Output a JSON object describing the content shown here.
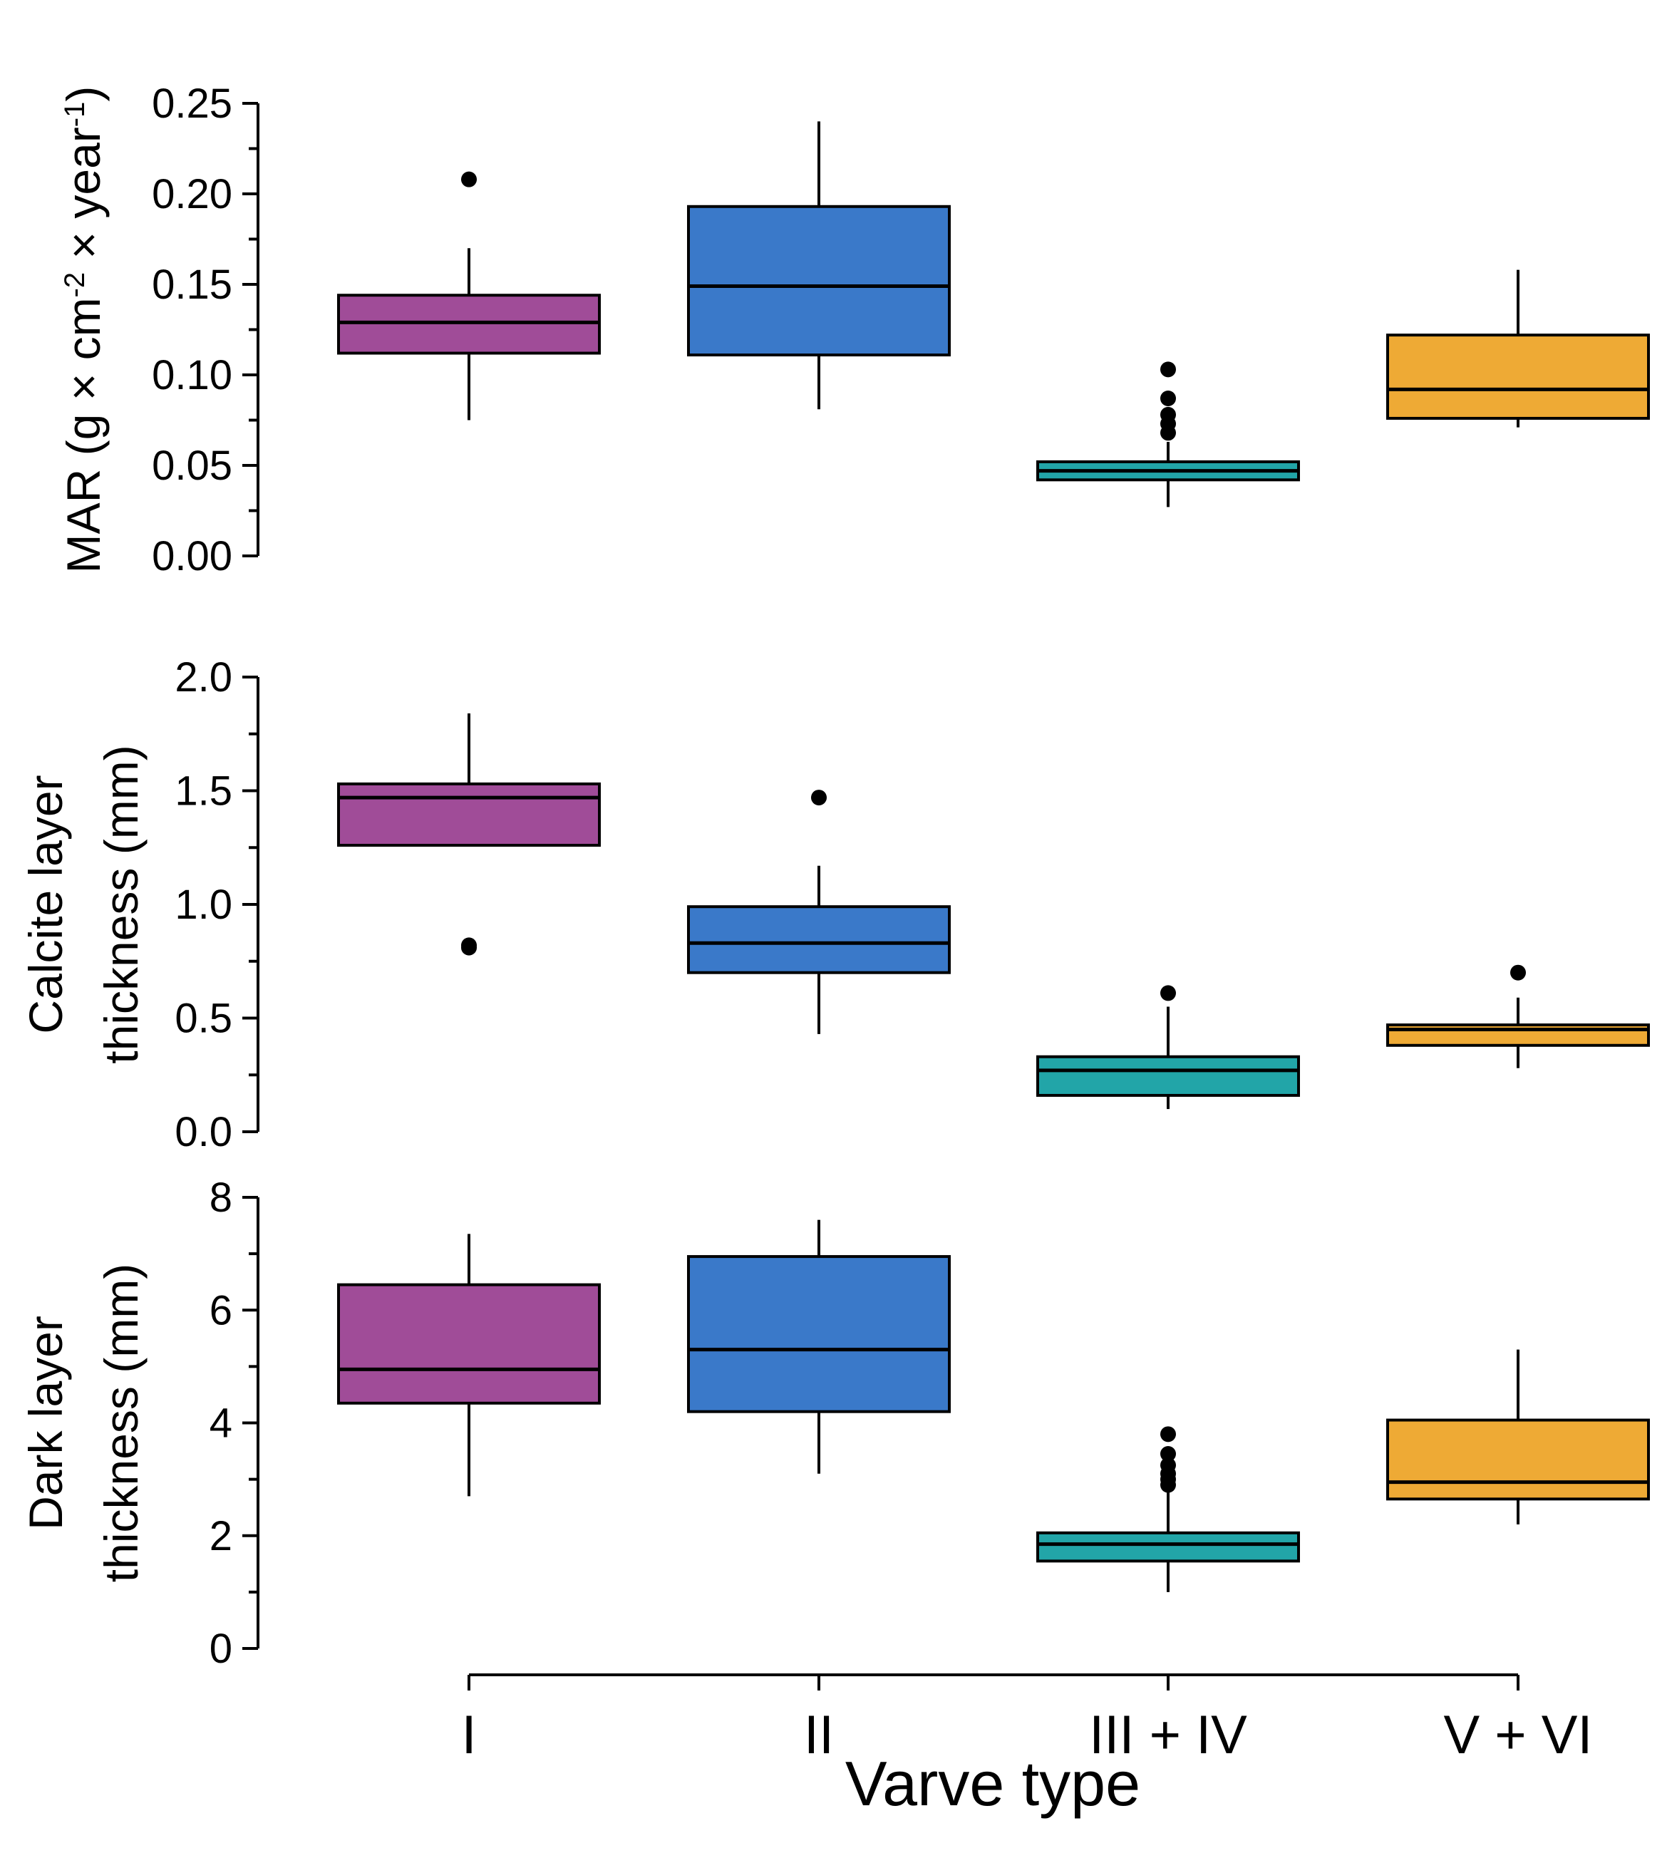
{
  "chart_data": {
    "type": "boxplot",
    "xlabel": "Varve type",
    "categories": [
      "I",
      "II",
      "III + IV",
      "V + VI"
    ],
    "colors": [
      "#a04c98",
      "#3a79c9",
      "#22a5a8",
      "#eeaa35"
    ],
    "panels": [
      {
        "id": "mar",
        "ylabel_lines": [
          [
            {
              "t": "MAR (g × cm"
            },
            {
              "t": "-2",
              "sup": true
            },
            {
              "t": " × year"
            },
            {
              "t": "-1",
              "sup": true
            },
            {
              "t": ")"
            }
          ]
        ],
        "ylim": [
          0,
          0.25
        ],
        "major_ticks": [
          0,
          0.05,
          0.1,
          0.15,
          0.2,
          0.25
        ],
        "tick_labels": [
          "0.00",
          "0.05",
          "0.10",
          "0.15",
          "0.20",
          "0.25"
        ],
        "minor_ticks": [
          0.025,
          0.075,
          0.125,
          0.175,
          0.225
        ],
        "boxes": [
          {
            "whisker_low": 0.075,
            "q1": 0.112,
            "median": 0.129,
            "q3": 0.144,
            "whisker_high": 0.17,
            "outliers": [
              0.208
            ]
          },
          {
            "whisker_low": 0.081,
            "q1": 0.111,
            "median": 0.149,
            "q3": 0.193,
            "whisker_high": 0.24,
            "outliers": []
          },
          {
            "whisker_low": 0.027,
            "q1": 0.042,
            "median": 0.047,
            "q3": 0.052,
            "whisker_high": 0.063,
            "outliers": [
              0.068,
              0.073,
              0.078,
              0.087,
              0.103
            ]
          },
          {
            "whisker_low": 0.071,
            "q1": 0.076,
            "median": 0.092,
            "q3": 0.122,
            "whisker_high": 0.158,
            "outliers": []
          }
        ]
      },
      {
        "id": "calcite",
        "ylabel_lines": [
          [
            {
              "t": "Calcite layer"
            }
          ],
          [
            {
              "t": "thickness (mm)"
            }
          ]
        ],
        "ylim": [
          0,
          2.0
        ],
        "major_ticks": [
          0,
          0.5,
          1.0,
          1.5,
          2.0
        ],
        "tick_labels": [
          "0.0",
          "0.5",
          "1.0",
          "1.5",
          "2.0"
        ],
        "minor_ticks": [
          0.25,
          0.75,
          1.25,
          1.75
        ],
        "boxes": [
          {
            "whisker_low": 1.26,
            "q1": 1.26,
            "median": 1.47,
            "q3": 1.53,
            "whisker_high": 1.84,
            "outliers": [
              0.81,
              0.82
            ]
          },
          {
            "whisker_low": 0.43,
            "q1": 0.7,
            "median": 0.83,
            "q3": 0.99,
            "whisker_high": 1.17,
            "outliers": [
              1.47
            ]
          },
          {
            "whisker_low": 0.1,
            "q1": 0.16,
            "median": 0.27,
            "q3": 0.33,
            "whisker_high": 0.55,
            "outliers": [
              0.61
            ]
          },
          {
            "whisker_low": 0.28,
            "q1": 0.38,
            "median": 0.45,
            "q3": 0.47,
            "whisker_high": 0.59,
            "outliers": [
              0.7
            ]
          }
        ]
      },
      {
        "id": "dark",
        "ylabel_lines": [
          [
            {
              "t": "Dark layer"
            }
          ],
          [
            {
              "t": "thickness (mm)"
            }
          ]
        ],
        "ylim": [
          0,
          8
        ],
        "major_ticks": [
          0,
          2,
          4,
          6,
          8
        ],
        "tick_labels": [
          "0",
          "2",
          "4",
          "6",
          "8"
        ],
        "minor_ticks": [
          1,
          3,
          5,
          7
        ],
        "boxes": [
          {
            "whisker_low": 2.7,
            "q1": 4.35,
            "median": 4.95,
            "q3": 6.45,
            "whisker_high": 7.35,
            "outliers": []
          },
          {
            "whisker_low": 3.1,
            "q1": 4.2,
            "median": 5.3,
            "q3": 6.95,
            "whisker_high": 7.6,
            "outliers": []
          },
          {
            "whisker_low": 1.0,
            "q1": 1.55,
            "median": 1.85,
            "q3": 2.05,
            "whisker_high": 2.8,
            "outliers": [
              2.9,
              3.0,
              3.1,
              3.25,
              3.45,
              3.8
            ]
          },
          {
            "whisker_low": 2.2,
            "q1": 2.65,
            "median": 2.95,
            "q3": 4.05,
            "whisker_high": 5.3,
            "outliers": []
          }
        ]
      }
    ]
  }
}
